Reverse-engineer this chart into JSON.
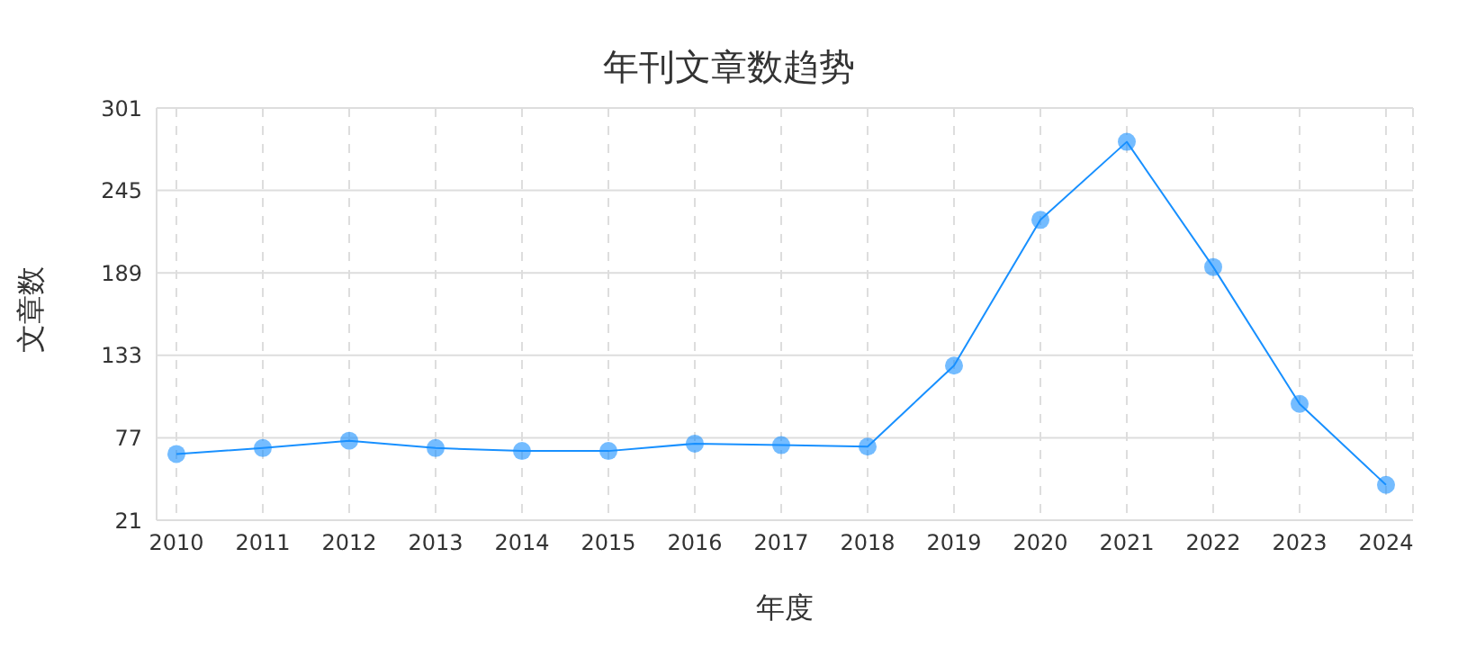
{
  "chart_data": {
    "type": "line",
    "title": "年刊文章数趋势",
    "xlabel": "年度",
    "ylabel": "文章数",
    "categories": [
      "2010",
      "2011",
      "2012",
      "2013",
      "2014",
      "2015",
      "2016",
      "2017",
      "2018",
      "2019",
      "2020",
      "2021",
      "2022",
      "2023",
      "2024"
    ],
    "series": [
      {
        "color": "#1890ff",
        "values": [
          66,
          70,
          75,
          70,
          68,
          68,
          73,
          72,
          71,
          126,
          225,
          278,
          193,
          100,
          45
        ]
      }
    ],
    "ylim": [
      21,
      301
    ],
    "yticks": [
      21,
      77,
      133,
      189,
      245,
      301
    ],
    "grid": true,
    "marker": "circle",
    "line_style": "solid"
  }
}
